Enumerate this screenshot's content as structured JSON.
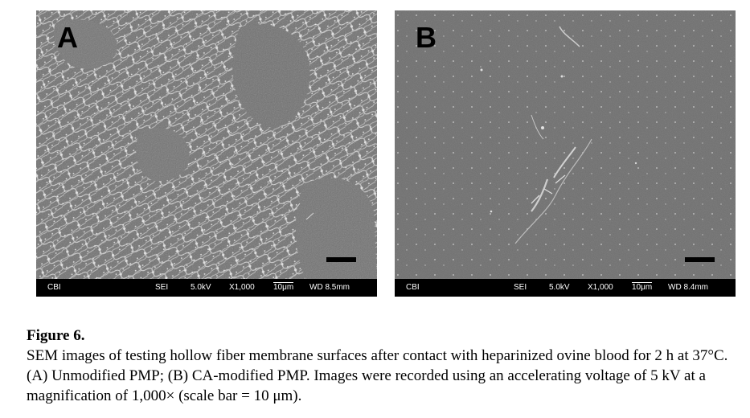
{
  "panels": [
    {
      "letter": "A",
      "info": {
        "label": "CBI",
        "mode": "SEI",
        "voltage": "5.0kV",
        "magnification": "X1,000",
        "scale": "10μm",
        "working_distance": "WD 8.5mm"
      }
    },
    {
      "letter": "B",
      "info": {
        "label": "CBI",
        "mode": "SEI",
        "voltage": "5.0kV",
        "magnification": "X1,000",
        "scale": "10μm",
        "working_distance": "WD 8.4mm"
      }
    }
  ],
  "caption": {
    "title": "Figure 6.",
    "text": "SEM images of testing hollow fiber membrane surfaces after contact with heparinized ovine blood for 2 h at 37°C. (A) Unmodified PMP; (B) CA-modified PMP. Images were recorded using an accelerating voltage of 5 kV at a magnification of 1,000× (scale bar = 10 μm)."
  }
}
